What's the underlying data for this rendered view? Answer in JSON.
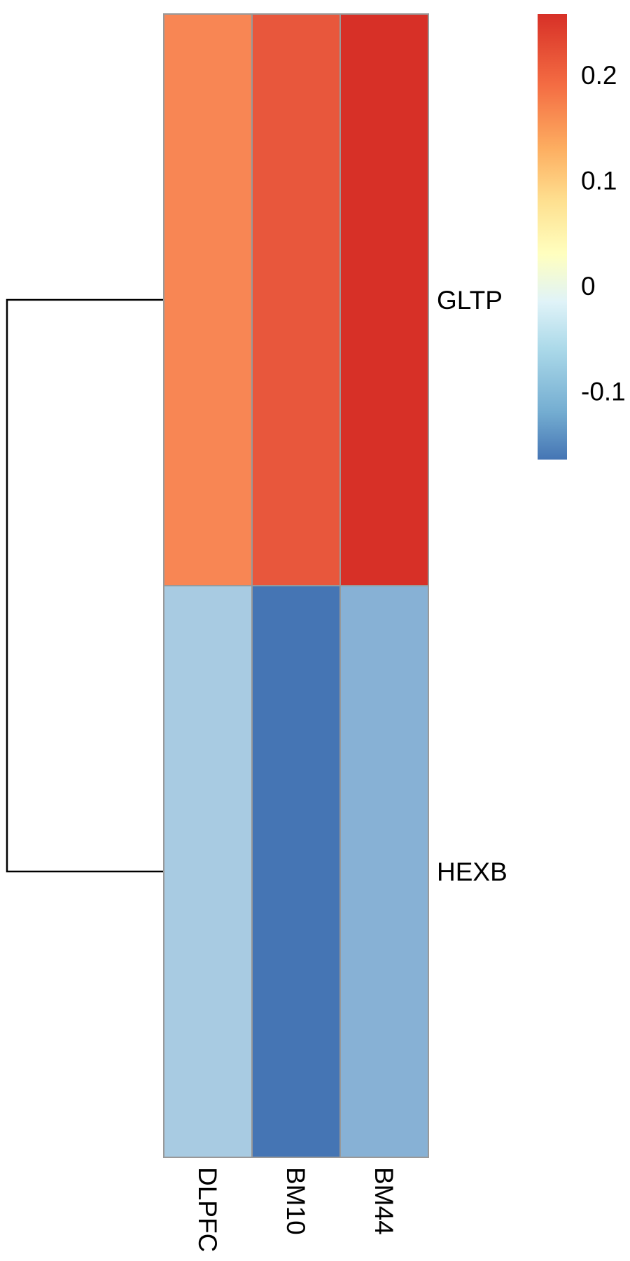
{
  "chart_data": {
    "type": "heatmap",
    "title": "",
    "xlabel": "",
    "ylabel": "",
    "columns": [
      "DLPFC",
      "BM10",
      "BM44"
    ],
    "rows": [
      "GLTP",
      "HEXB"
    ],
    "values": [
      [
        0.2,
        0.23,
        0.255
      ],
      [
        -0.05,
        -0.16,
        -0.09
      ]
    ],
    "color_scale": {
      "min": -0.165,
      "max": 0.258,
      "ticks": [
        0.2,
        0.1,
        0,
        -0.1
      ],
      "tick_labels": [
        "0.2",
        "0.1",
        "0",
        "-0.1"
      ],
      "stops": [
        {
          "value": -0.165,
          "color": "#4575b4"
        },
        {
          "value": -0.12,
          "color": "#74add1"
        },
        {
          "value": -0.06,
          "color": "#abd9e9"
        },
        {
          "value": -0.015,
          "color": "#e0f3f8"
        },
        {
          "value": 0.03,
          "color": "#ffffbf"
        },
        {
          "value": 0.08,
          "color": "#fee090"
        },
        {
          "value": 0.13,
          "color": "#fdae61"
        },
        {
          "value": 0.19,
          "color": "#f46d43"
        },
        {
          "value": 0.258,
          "color": "#d73027"
        }
      ]
    },
    "cell_colors": [
      [
        "#f88654",
        "#e8573c",
        "#d73027"
      ],
      [
        "#a8cbe2",
        "#4575b4",
        "#87b1d5"
      ]
    ],
    "grid_color": "#999999",
    "row_dendrogram": true,
    "legend_position": "top-right"
  }
}
